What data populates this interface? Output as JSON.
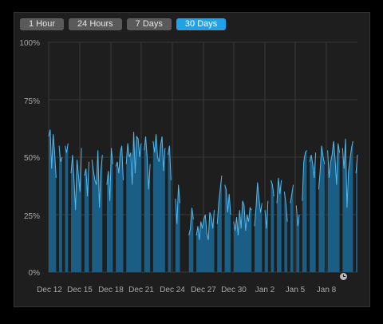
{
  "range_buttons": [
    {
      "label": "1 Hour",
      "active": false
    },
    {
      "label": "24 Hours",
      "active": false
    },
    {
      "label": "7 Days",
      "active": false
    },
    {
      "label": "30 Days",
      "active": true
    }
  ],
  "colors": {
    "bar_fill": "#1a5e86",
    "bar_line": "#52b8ec",
    "grid": "#3a3a3a",
    "active_button": "#1ea2ea"
  },
  "icons": {
    "footer": "clock-icon"
  },
  "chart_data": {
    "type": "area",
    "title": "",
    "xlabel": "",
    "ylabel": "",
    "ylim": [
      0,
      100
    ],
    "yticks": [
      "0%",
      "25%",
      "50%",
      "75%",
      "100%"
    ],
    "xtick_labels": [
      "Dec 12",
      "Dec 15",
      "Dec 18",
      "Dec 21",
      "Dec 24",
      "Dec 27",
      "Dec 30",
      "Jan 2",
      "Jan 5",
      "Jan 8"
    ],
    "x_start": "Dec 12",
    "x_end": "Jan 10",
    "grid": true,
    "series": [
      {
        "values": [
          59,
          62,
          45,
          60,
          52,
          41,
          0,
          55,
          48,
          50,
          0,
          55,
          52,
          56,
          0,
          43,
          51,
          40,
          27,
          49,
          42,
          35,
          54,
          0,
          42,
          45,
          33,
          48,
          0,
          49,
          44,
          40,
          38,
          53,
          28,
          44,
          51,
          0,
          0,
          38,
          44,
          31,
          54,
          47,
          0,
          46,
          48,
          43,
          52,
          55,
          40,
          0,
          47,
          56,
          50,
          52,
          38,
          61,
          43,
          59,
          58,
          50,
          56,
          0,
          53,
          59,
          50,
          36,
          47,
          0,
          57,
          52,
          60,
          50,
          48,
          55,
          59,
          44,
          54,
          0,
          51,
          55,
          40,
          0,
          0,
          32,
          21,
          38,
          30,
          0,
          0,
          0,
          0,
          0,
          16,
          19,
          28,
          23,
          0,
          16,
          20,
          14,
          22,
          19,
          23,
          25,
          17,
          14,
          26,
          24,
          19,
          27,
          0,
          21,
          30,
          36,
          42,
          0,
          38,
          36,
          26,
          34,
          25,
          0,
          22,
          18,
          24,
          16,
          27,
          19,
          31,
          29,
          18,
          25,
          22,
          28,
          27,
          0,
          20,
          28,
          39,
          32,
          26,
          30,
          0,
          27,
          19,
          31,
          0,
          40,
          38,
          33,
          0,
          30,
          41,
          34,
          40,
          0,
          35,
          30,
          22,
          0,
          30,
          34,
          38,
          0,
          29,
          20,
          25,
          0,
          31,
          48,
          52,
          53,
          0,
          48,
          51,
          47,
          41,
          52,
          0,
          36,
          44,
          55,
          50,
          47,
          0,
          53,
          41,
          48,
          51,
          57,
          49,
          38,
          56,
          52,
          0,
          54,
          45,
          58,
          28,
          44,
          49,
          54,
          57,
          0,
          43,
          51
        ]
      }
    ]
  }
}
